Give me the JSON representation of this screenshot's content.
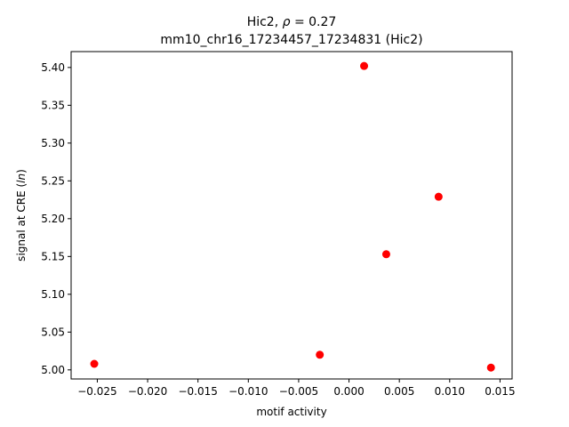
{
  "chart_data": {
    "type": "scatter",
    "title_prefix": "Hic2, ",
    "title_rho_symbol": "ρ",
    "title_rho_text": " = 0.27",
    "subtitle": "mm10_chr16_17234457_17234831 (Hic2)",
    "xlabel": "motif activity",
    "ylabel_prefix": "signal at CRE (",
    "ylabel_italic": "ln",
    "ylabel_suffix": ")",
    "xlim": [
      -0.0276,
      0.0162
    ],
    "ylim": [
      4.988,
      5.421
    ],
    "x_ticks": [
      -0.025,
      -0.02,
      -0.015,
      -0.01,
      -0.005,
      0.0,
      0.005,
      0.01,
      0.015
    ],
    "x_tick_labels": [
      "−0.025",
      "−0.020",
      "−0.015",
      "−0.010",
      "−0.005",
      "0.000",
      "0.005",
      "0.010",
      "0.015"
    ],
    "y_ticks": [
      5.0,
      5.05,
      5.1,
      5.15,
      5.2,
      5.25,
      5.3,
      5.35,
      5.4
    ],
    "y_tick_labels": [
      "5.00",
      "5.05",
      "5.10",
      "5.15",
      "5.20",
      "5.25",
      "5.30",
      "5.35",
      "5.40"
    ],
    "grid": false,
    "marker_color": "#ff0000",
    "points": [
      {
        "x": -0.0253,
        "y": 5.008
      },
      {
        "x": -0.0029,
        "y": 5.02
      },
      {
        "x": 0.0015,
        "y": 5.402
      },
      {
        "x": 0.0037,
        "y": 5.153
      },
      {
        "x": 0.0089,
        "y": 5.229
      },
      {
        "x": 0.0141,
        "y": 5.003
      }
    ]
  }
}
